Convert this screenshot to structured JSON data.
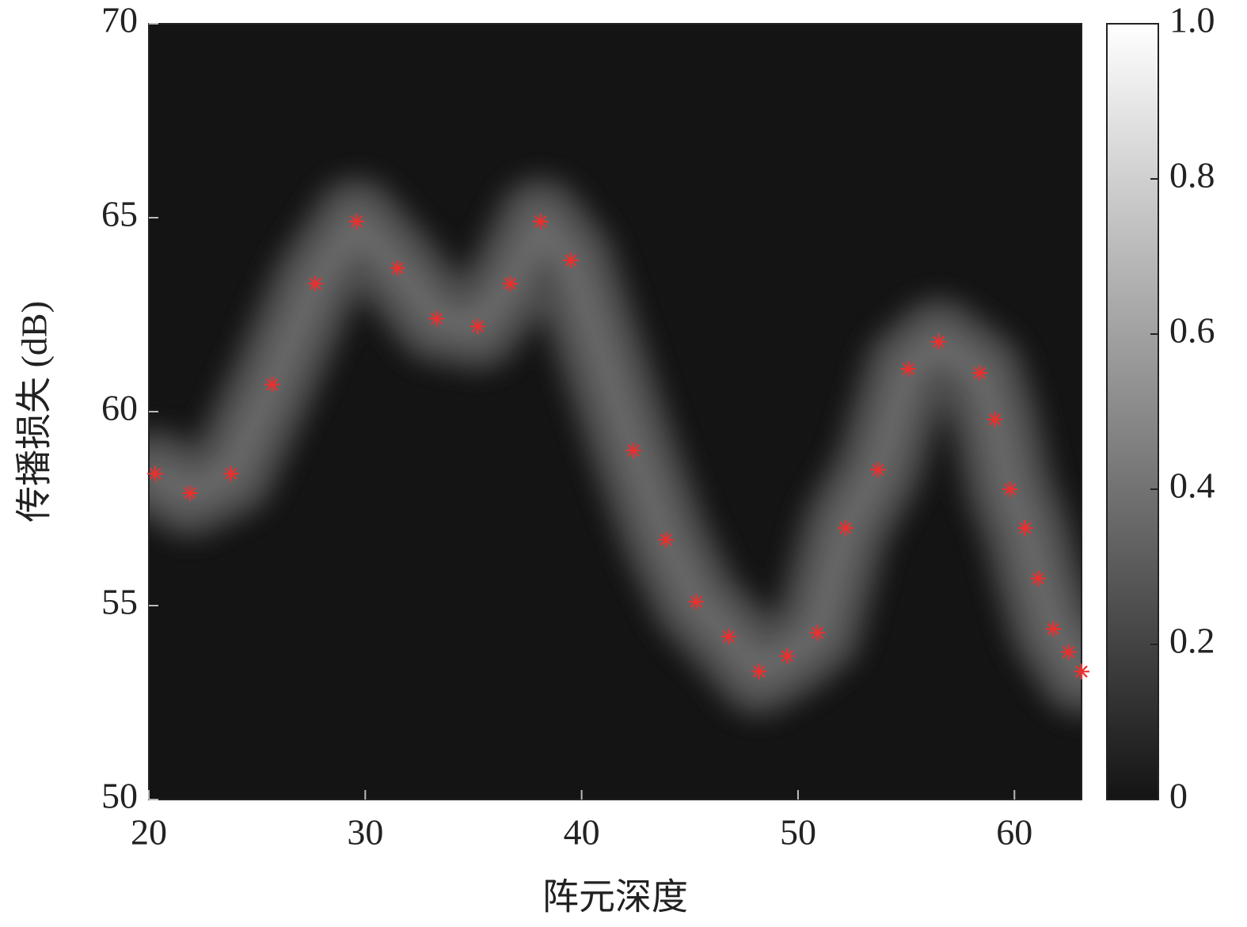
{
  "chart_data": {
    "type": "scatter",
    "x_label": "阵元深度",
    "y_label": "传播损失 (dB)",
    "x": [
      20.3,
      21.9,
      23.8,
      25.7,
      27.7,
      29.6,
      31.5,
      33.3,
      35.2,
      36.7,
      38.1,
      39.5,
      42.4,
      43.9,
      45.3,
      46.8,
      48.2,
      49.5,
      50.9,
      52.2,
      53.7,
      55.1,
      56.5,
      58.4,
      59.1,
      59.8,
      60.5,
      61.1,
      61.8,
      62.5,
      63.1
    ],
    "values": [
      58.4,
      57.9,
      58.4,
      60.7,
      63.3,
      64.9,
      63.7,
      62.4,
      62.2,
      63.3,
      64.9,
      63.9,
      59.0,
      56.7,
      55.1,
      54.2,
      53.3,
      53.7,
      54.3,
      57.0,
      58.5,
      61.1,
      61.8,
      61.0,
      59.8,
      58.0,
      57.0,
      55.7,
      54.4,
      53.8,
      53.3
    ],
    "color": "#e8312f",
    "xlim": [
      20,
      63.1
    ],
    "ylim": [
      50,
      70
    ],
    "xticks": [
      20,
      30,
      40,
      50,
      60
    ],
    "yticks": [
      50,
      55,
      60,
      65,
      70
    ],
    "colorbar": {
      "colormap": "gray",
      "lim": [
        0,
        1
      ],
      "ticks": [
        0,
        0.2,
        0.4,
        0.6,
        0.8,
        {
          "value": 1,
          "label": "1.0"
        }
      ]
    }
  }
}
